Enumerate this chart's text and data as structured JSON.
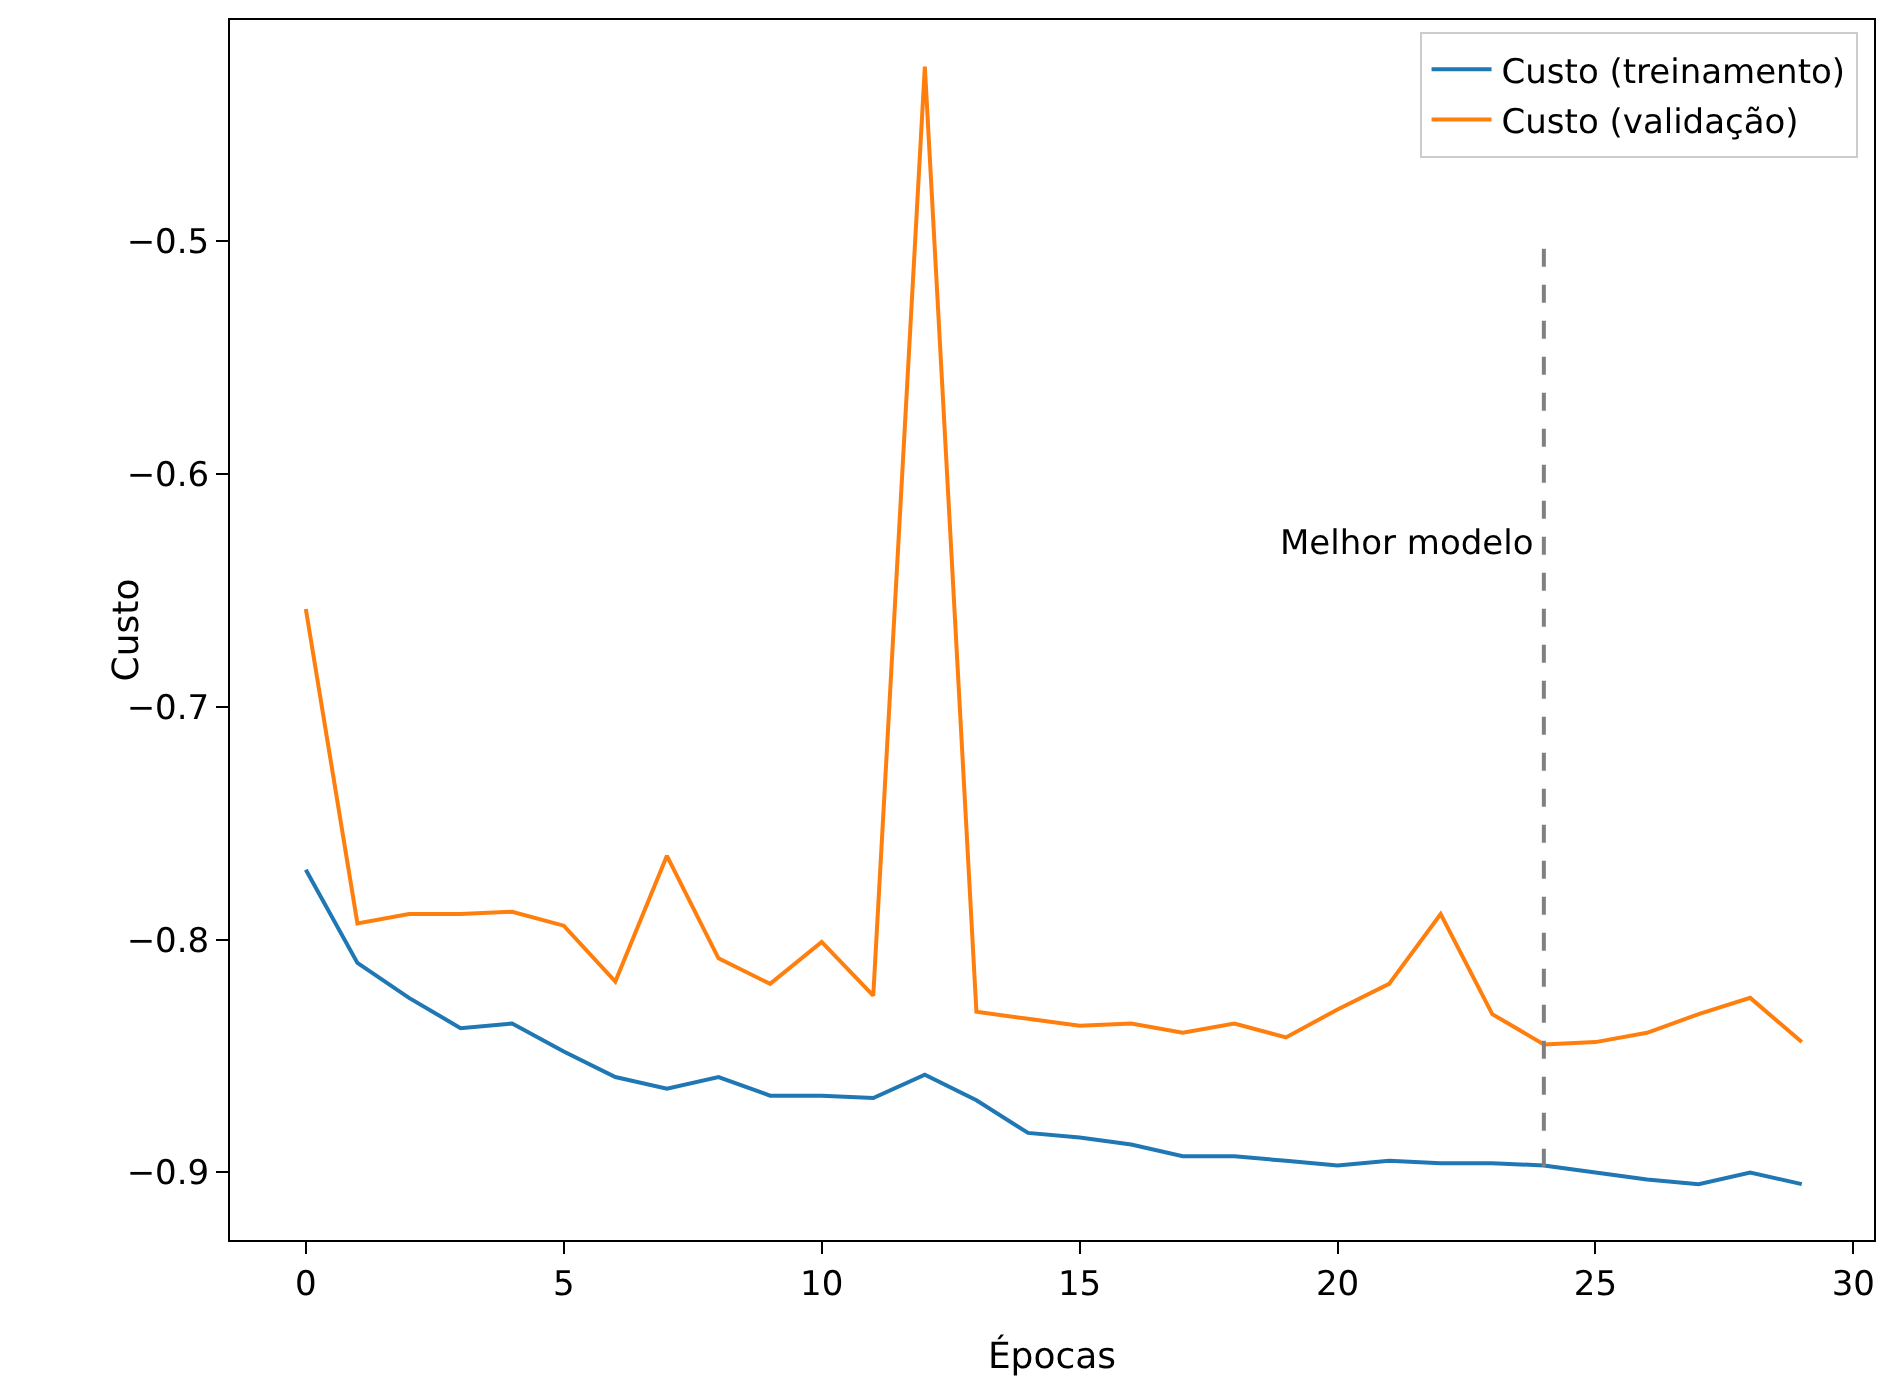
{
  "chart_data": {
    "type": "line",
    "xlabel": "Épocas",
    "ylabel": "Custo",
    "x": [
      0,
      1,
      2,
      3,
      4,
      5,
      6,
      7,
      8,
      9,
      10,
      11,
      12,
      13,
      14,
      15,
      16,
      17,
      18,
      19,
      20,
      21,
      22,
      23,
      24,
      25,
      26,
      27,
      28,
      29
    ],
    "series": [
      {
        "name": "Custo (treinamento)",
        "color": "#1f77b4",
        "values": [
          -0.77,
          -0.81,
          -0.825,
          -0.838,
          -0.836,
          -0.848,
          -0.859,
          -0.864,
          -0.859,
          -0.867,
          -0.867,
          -0.868,
          -0.858,
          -0.869,
          -0.883,
          -0.885,
          -0.888,
          -0.893,
          -0.893,
          -0.895,
          -0.897,
          -0.895,
          -0.896,
          -0.896,
          -0.897,
          -0.9,
          -0.903,
          -0.905,
          -0.9,
          -0.905
        ]
      },
      {
        "name": "Custo (validação)",
        "color": "#ff7f0e",
        "values": [
          -0.658,
          -0.793,
          -0.789,
          -0.789,
          -0.788,
          -0.794,
          -0.818,
          -0.764,
          -0.808,
          -0.819,
          -0.801,
          -0.824,
          -0.425,
          -0.831,
          -0.834,
          -0.837,
          -0.836,
          -0.84,
          -0.836,
          -0.842,
          -0.83,
          -0.819,
          -0.789,
          -0.832,
          -0.845,
          -0.844,
          -0.84,
          -0.832,
          -0.825,
          -0.844
        ]
      }
    ],
    "xlim": [
      -1.47,
      30.4
    ],
    "ylim": [
      -0.929,
      -0.405
    ],
    "xticks": [
      0,
      5,
      10,
      15,
      20,
      25,
      30
    ],
    "yticks": [
      {
        "value": -0.9,
        "label": "−0.9"
      },
      {
        "value": -0.8,
        "label": "−0.8"
      },
      {
        "value": -0.7,
        "label": "−0.7"
      },
      {
        "value": -0.6,
        "label": "−0.6"
      },
      {
        "value": -0.5,
        "label": "−0.5"
      }
    ],
    "ref_lines": [
      {
        "axis": "x",
        "value": 24,
        "label": "Melhor modelo",
        "color": "#808080",
        "line_style": "dashed"
      }
    ],
    "grid": false,
    "legend": "top right",
    "marker": "none",
    "line_style": "solid"
  }
}
